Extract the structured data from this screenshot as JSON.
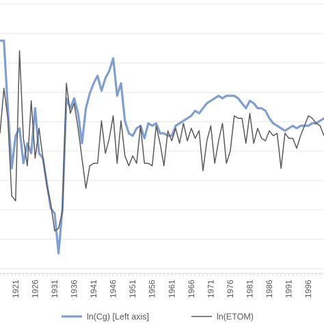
{
  "chart_data": {
    "type": "line",
    "title": "",
    "xlabel": "",
    "ylabel": "",
    "grid": "horizontal",
    "legend_position": "bottom",
    "x_tick_labels": [
      "1921",
      "1926",
      "1931",
      "1936",
      "1941",
      "1946",
      "1951",
      "1956",
      "1961",
      "1966",
      "1971",
      "1976",
      "1981",
      "1986",
      "1991",
      "1996"
    ],
    "xlim": [
      1917,
      2000
    ],
    "ylim": [
      0,
      100
    ],
    "years": [
      1917,
      1918,
      1919,
      1920,
      1921,
      1922,
      1923,
      1924,
      1925,
      1926,
      1927,
      1928,
      1929,
      1930,
      1931,
      1932,
      1933,
      1934,
      1935,
      1936,
      1937,
      1938,
      1939,
      1940,
      1941,
      1942,
      1943,
      1944,
      1945,
      1946,
      1947,
      1948,
      1949,
      1950,
      1951,
      1952,
      1953,
      1954,
      1955,
      1956,
      1957,
      1958,
      1959,
      1960,
      1961,
      1962,
      1963,
      1964,
      1965,
      1966,
      1967,
      1968,
      1969,
      1970,
      1971,
      1972,
      1973,
      1974,
      1975,
      1976,
      1977,
      1978,
      1979,
      1980,
      1981,
      1982,
      1983,
      1984,
      1985,
      1986,
      1987,
      1988,
      1989,
      1990,
      1991,
      1992,
      1993,
      1994,
      1995,
      1996,
      1997,
      1998,
      1999,
      2000
    ],
    "series": [
      {
        "name": "ln(Cg) [Left axis]",
        "color": "#7f9fd3",
        "values": [
          87,
          87,
          60,
          36,
          49,
          52,
          38,
          46,
          42,
          60,
          42,
          40,
          30,
          20,
          18,
          2,
          20,
          64,
          60,
          64,
          58,
          46,
          60,
          66,
          70,
          73,
          67,
          72,
          75,
          80,
          65,
          70,
          55,
          50,
          49,
          52,
          53,
          48,
          54,
          53,
          54,
          50,
          50,
          49,
          49,
          53,
          54,
          55,
          56,
          57,
          59,
          58,
          60,
          62,
          63,
          64,
          65,
          64,
          65,
          65,
          65,
          64,
          62,
          60,
          63,
          62,
          60,
          60,
          59,
          56,
          54,
          53,
          52,
          51,
          52,
          53,
          52,
          53,
          53,
          53,
          54,
          54,
          55,
          56
        ]
      },
      {
        "name": "ln(ETOM)",
        "color": "#595959",
        "values": [
          50,
          68,
          56,
          25,
          23,
          83,
          48,
          37,
          63,
          40,
          52,
          40,
          29,
          22,
          11,
          12,
          19,
          70,
          58,
          62,
          52,
          40,
          28,
          37,
          38,
          38,
          55,
          42,
          48,
          57,
          38,
          55,
          41,
          37,
          41,
          38,
          53,
          38,
          38,
          37,
          53,
          46,
          37,
          51,
          47,
          52,
          46,
          54,
          47,
          52,
          48,
          51,
          35,
          47,
          53,
          38,
          47,
          54,
          38,
          43,
          57,
          56,
          56,
          46,
          58,
          46,
          52,
          48,
          47,
          51,
          49,
          50,
          36,
          50,
          48,
          48,
          44,
          49,
          53,
          57,
          56,
          54,
          53,
          49
        ]
      }
    ]
  }
}
